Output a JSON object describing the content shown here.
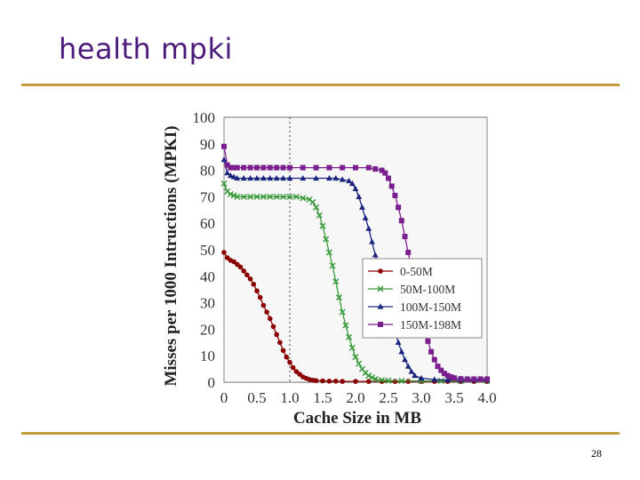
{
  "slide": {
    "title": "health mpki",
    "page_number": "28"
  },
  "chart_data": {
    "type": "line",
    "title": "",
    "xlabel": "Cache Size in MB",
    "ylabel": "Misses per 1000 Intructions (MPKI)",
    "xlim": [
      0,
      4.0
    ],
    "ylim": [
      0,
      100
    ],
    "x_ticks": [
      "0",
      "0.5",
      "1.0",
      "1.5",
      "2.0",
      "2.5",
      "3.0",
      "3.5",
      "4.0"
    ],
    "y_ticks": [
      "0",
      "10",
      "20",
      "30",
      "40",
      "50",
      "60",
      "70",
      "80",
      "90",
      "100"
    ],
    "reference_line_x": 1.0,
    "grid": true,
    "legend_position": "center-right",
    "series": [
      {
        "name": "0-50M",
        "color": "#8b0000",
        "marker": "circle",
        "x": [
          0,
          0.05,
          0.1,
          0.15,
          0.2,
          0.25,
          0.3,
          0.35,
          0.4,
          0.45,
          0.5,
          0.55,
          0.6,
          0.65,
          0.7,
          0.75,
          0.8,
          0.85,
          0.9,
          0.95,
          1.0,
          1.05,
          1.1,
          1.15,
          1.2,
          1.25,
          1.3,
          1.35,
          1.4,
          1.5,
          1.6,
          1.7,
          1.8,
          2.0,
          2.2,
          2.4,
          2.6,
          2.8,
          3.0,
          3.2,
          3.4,
          3.6,
          3.8,
          4.0
        ],
        "y": [
          49,
          47,
          46,
          45.5,
          44.5,
          43.5,
          42,
          40.5,
          39,
          37,
          34.5,
          32,
          29,
          26.5,
          24,
          21,
          18,
          15,
          12,
          9.5,
          7.5,
          5.5,
          4,
          3,
          2,
          1.5,
          1,
          0.8,
          0.6,
          0.5,
          0.4,
          0.4,
          0.3,
          0.3,
          0.3,
          0.3,
          0.3,
          0.3,
          0.3,
          0.3,
          0.3,
          0.3,
          0.3,
          0.3
        ]
      },
      {
        "name": "50M-100M",
        "color": "#3a9a3a",
        "marker": "x",
        "x": [
          0,
          0.05,
          0.1,
          0.15,
          0.2,
          0.3,
          0.4,
          0.5,
          0.6,
          0.7,
          0.8,
          0.9,
          1.0,
          1.1,
          1.2,
          1.3,
          1.35,
          1.4,
          1.45,
          1.5,
          1.55,
          1.6,
          1.65,
          1.7,
          1.75,
          1.8,
          1.85,
          1.9,
          1.95,
          2.0,
          2.05,
          2.1,
          2.15,
          2.2,
          2.25,
          2.3,
          2.4,
          2.5,
          2.7,
          3.0,
          3.3,
          3.6,
          4.0
        ],
        "y": [
          75,
          72,
          71,
          70.5,
          70,
          70,
          70,
          70,
          70,
          70,
          70,
          70,
          70,
          70,
          69.5,
          69,
          68,
          66,
          63,
          59,
          54,
          49,
          44,
          38,
          32,
          26.5,
          21.5,
          17,
          13,
          9.5,
          7,
          5,
          3.5,
          2.5,
          1.8,
          1.2,
          0.8,
          0.6,
          0.5,
          0.5,
          0.5,
          0.5,
          0.5
        ]
      },
      {
        "name": "100M-150M",
        "color": "#1a237e",
        "marker": "triangle",
        "x": [
          0,
          0.05,
          0.1,
          0.15,
          0.2,
          0.3,
          0.4,
          0.5,
          0.6,
          0.7,
          0.8,
          0.9,
          1.0,
          1.2,
          1.4,
          1.6,
          1.7,
          1.8,
          1.9,
          1.95,
          2.0,
          2.05,
          2.1,
          2.15,
          2.2,
          2.25,
          2.3,
          2.35,
          2.4,
          2.45,
          2.5,
          2.55,
          2.6,
          2.65,
          2.7,
          2.75,
          2.8,
          2.85,
          2.9,
          3.0,
          3.2,
          3.4,
          3.6,
          3.8,
          4.0
        ],
        "y": [
          84,
          79,
          78,
          77.5,
          77,
          77,
          77,
          77,
          77,
          77,
          77,
          77,
          77,
          77,
          77,
          77,
          77,
          76.5,
          76,
          75,
          73,
          70,
          66,
          62,
          58,
          53,
          48,
          43,
          38,
          33,
          28,
          23.5,
          19,
          15,
          11.5,
          8.5,
          6,
          4,
          2.5,
          1.5,
          1,
          0.8,
          0.8,
          0.8,
          0.8
        ]
      },
      {
        "name": "150M-198M",
        "color": "#7b1f8f",
        "marker": "square",
        "x": [
          0,
          0.05,
          0.1,
          0.15,
          0.2,
          0.3,
          0.4,
          0.5,
          0.6,
          0.7,
          0.8,
          0.9,
          1.0,
          1.2,
          1.4,
          1.6,
          1.8,
          2.0,
          2.2,
          2.3,
          2.4,
          2.45,
          2.5,
          2.55,
          2.6,
          2.65,
          2.7,
          2.75,
          2.8,
          2.85,
          2.9,
          2.95,
          3.0,
          3.05,
          3.1,
          3.15,
          3.2,
          3.25,
          3.3,
          3.35,
          3.4,
          3.45,
          3.5,
          3.6,
          3.7,
          3.8,
          3.9,
          4.0
        ],
        "y": [
          89,
          82,
          81,
          81,
          81,
          81,
          81,
          81,
          81,
          81,
          81,
          81,
          81,
          81,
          81,
          81,
          81,
          81,
          81,
          80.5,
          80,
          79,
          77,
          74,
          70.5,
          66,
          61,
          55,
          49,
          43,
          37,
          31,
          25,
          20,
          15.5,
          11.5,
          8.5,
          6,
          4.5,
          3.3,
          2.5,
          2,
          1.6,
          1.3,
          1.2,
          1.2,
          1.2,
          1.2
        ]
      }
    ]
  }
}
